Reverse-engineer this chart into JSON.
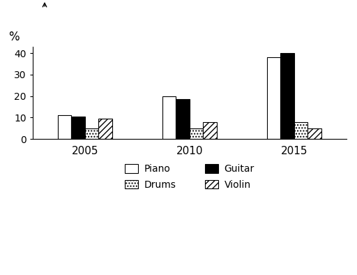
{
  "years": [
    "2005",
    "2010",
    "2015"
  ],
  "instruments": [
    "Piano",
    "Guitar",
    "Drums",
    "Violin"
  ],
  "values": {
    "Piano": [
      11,
      20,
      38
    ],
    "Guitar": [
      10.5,
      18.5,
      40
    ],
    "Drums": [
      5,
      5,
      8
    ],
    "Violin": [
      9.5,
      8,
      5
    ]
  },
  "colors": {
    "Piano": "white",
    "Guitar": "black",
    "Drums": "white",
    "Violin": "white"
  },
  "hatches": {
    "Piano": "",
    "Guitar": "",
    "Drums": "....",
    "Violin": "////"
  },
  "ylabel": "%",
  "ylim": [
    0,
    43
  ],
  "yticks": [
    0,
    10,
    20,
    30,
    40
  ],
  "bar_width": 0.13,
  "background_color": "#ffffff",
  "legend_order": [
    "Piano",
    "Drums",
    "Guitar",
    "Violin"
  ]
}
